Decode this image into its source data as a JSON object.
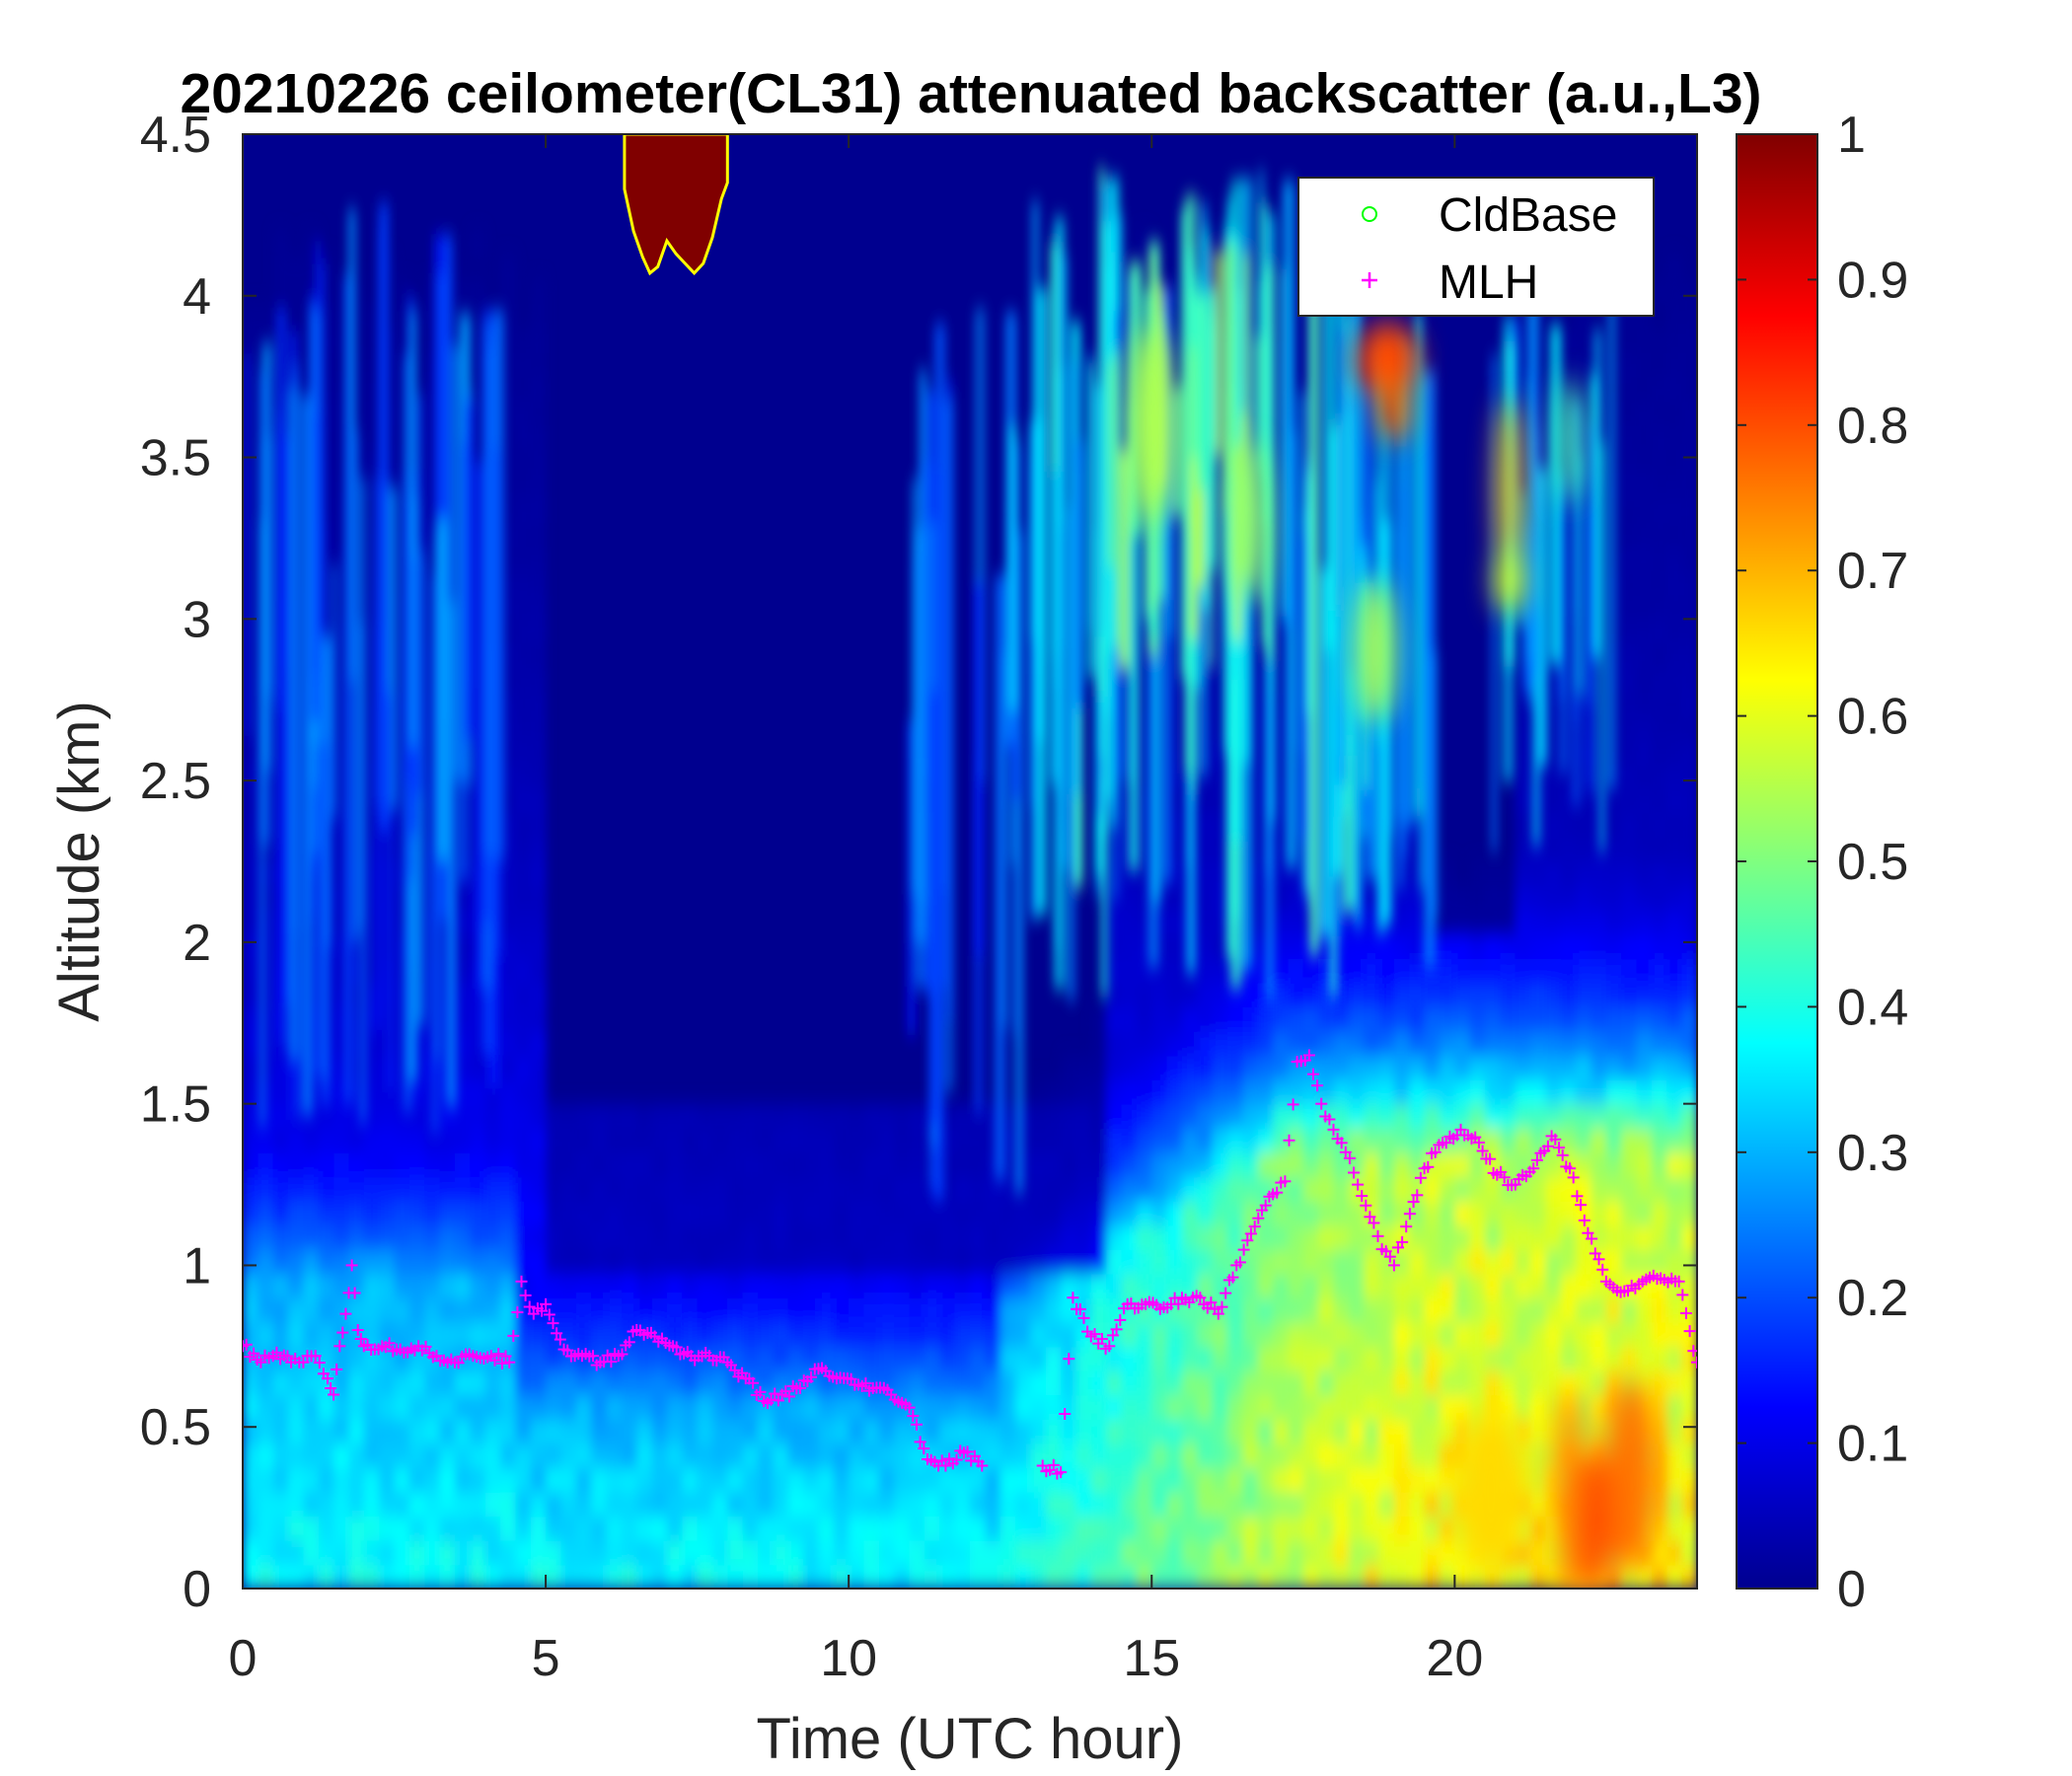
{
  "chart_data": {
    "type": "heatmap",
    "title": "20210226 ceilometer(CL31) attenuated backscatter (a.u.,L3)",
    "xlabel": "Time (UTC hour)",
    "ylabel": "Altitude (km)",
    "xlim": [
      0,
      24
    ],
    "ylim": [
      0,
      4.5
    ],
    "x_ticks": [
      0,
      5,
      10,
      15,
      20
    ],
    "y_ticks": [
      0,
      0.5,
      1,
      1.5,
      2,
      2.5,
      3,
      3.5,
      4,
      4.5
    ],
    "x_tick_labels": [
      "0",
      "5",
      "10",
      "15",
      "20"
    ],
    "y_tick_labels": [
      "0",
      "0.5",
      "1",
      "1.5",
      "2",
      "2.5",
      "3",
      "3.5",
      "4",
      "4.5"
    ],
    "colorbar": {
      "colormap": "jet",
      "range": [
        0,
        1
      ],
      "ticks": [
        0,
        0.1,
        0.2,
        0.3,
        0.4,
        0.5,
        0.6,
        0.7,
        0.8,
        0.9,
        1
      ],
      "tick_labels": [
        "0",
        "0.1",
        "0.2",
        "0.3",
        "0.4",
        "0.5",
        "0.6",
        "0.7",
        "0.8",
        "0.9",
        "1"
      ]
    },
    "legend": {
      "placement": "top-right",
      "entries": [
        {
          "label": "CldBase",
          "marker": "circle",
          "color": "#00ff00"
        },
        {
          "label": "MLH",
          "marker": "plus",
          "color": "#ff00ff"
        }
      ]
    },
    "series": [
      {
        "name": "MLH",
        "marker": "plus",
        "color": "#ff00ff",
        "x": [
          0.0,
          0.3,
          0.5,
          0.8,
          1.0,
          1.2,
          1.4,
          1.5,
          1.6,
          1.7,
          1.8,
          1.9,
          2.0,
          2.3,
          2.6,
          2.9,
          3.2,
          3.5,
          3.8,
          4.1,
          4.4,
          4.6,
          4.8,
          5.0,
          5.3,
          5.6,
          5.9,
          6.2,
          6.5,
          6.8,
          7.1,
          7.4,
          7.7,
          8.0,
          8.3,
          8.6,
          8.9,
          9.2,
          9.5,
          9.8,
          10.1,
          10.4,
          10.7,
          11.0,
          11.3,
          11.6,
          11.9,
          12.2,
          13.2,
          13.5,
          13.7,
          14.0,
          14.3,
          14.6,
          14.9,
          15.2,
          15.5,
          15.8,
          16.1,
          16.4,
          16.7,
          17.0,
          17.2,
          17.4,
          17.6,
          17.8,
          18.0,
          18.2,
          18.4,
          18.6,
          18.8,
          19.0,
          19.2,
          19.5,
          19.8,
          20.1,
          20.4,
          20.7,
          21.0,
          21.3,
          21.6,
          21.9,
          22.2,
          22.5,
          22.8,
          23.1,
          23.4,
          23.7,
          24.0
        ],
        "y": [
          0.75,
          0.7,
          0.72,
          0.7,
          0.7,
          0.72,
          0.65,
          0.6,
          0.75,
          0.85,
          1.0,
          0.8,
          0.75,
          0.75,
          0.74,
          0.75,
          0.72,
          0.7,
          0.72,
          0.72,
          0.7,
          0.95,
          0.85,
          0.88,
          0.74,
          0.72,
          0.7,
          0.72,
          0.8,
          0.78,
          0.75,
          0.72,
          0.72,
          0.7,
          0.65,
          0.58,
          0.6,
          0.62,
          0.68,
          0.65,
          0.63,
          0.62,
          0.6,
          0.56,
          0.4,
          0.38,
          0.42,
          0.38,
          0.38,
          0.36,
          0.9,
          0.78,
          0.75,
          0.88,
          0.88,
          0.87,
          0.9,
          0.9,
          0.85,
          1.0,
          1.12,
          1.22,
          1.26,
          1.63,
          1.65,
          1.5,
          1.42,
          1.35,
          1.25,
          1.15,
          1.05,
          1.0,
          1.12,
          1.3,
          1.38,
          1.42,
          1.38,
          1.28,
          1.25,
          1.3,
          1.4,
          1.3,
          1.1,
          0.95,
          0.92,
          0.95,
          0.96,
          0.95,
          0.7
        ]
      },
      {
        "name": "CldBase",
        "marker": "circle",
        "color": "#00ff00",
        "x": [],
        "y": []
      }
    ],
    "features": [
      {
        "kind": "cloud",
        "x": [
          6.3,
          8.0
        ],
        "y": [
          4.07,
          4.5
        ],
        "value": 1.0
      },
      {
        "kind": "aerosol-layer",
        "x": [
          22.0,
          24.0
        ],
        "y": [
          0.0,
          0.65
        ],
        "value": 0.78
      },
      {
        "kind": "elevated-layer",
        "x": [
          18.6,
          19.4
        ],
        "y": [
          3.6,
          3.9
        ],
        "value": 0.85
      }
    ],
    "grid": false
  }
}
